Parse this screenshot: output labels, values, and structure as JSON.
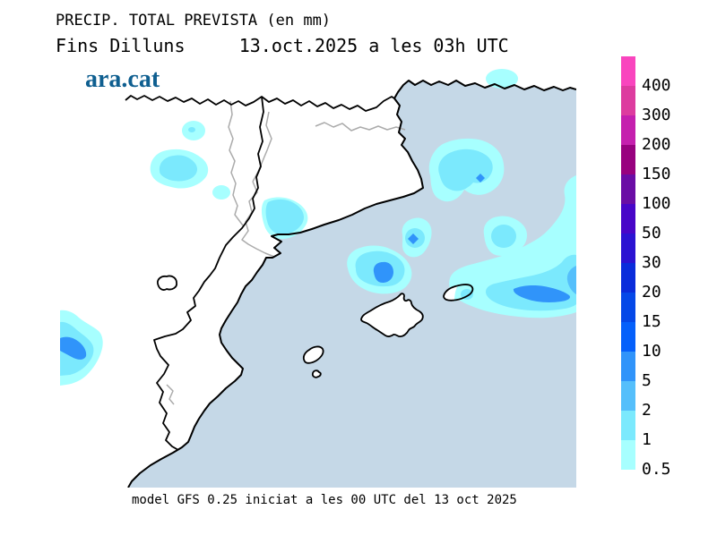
{
  "header": {
    "title": "PRECIP. TOTAL PREVISTA (en mm)",
    "subtitle": "Fins Dilluns     13.oct.2025 a les 03h UTC",
    "brand": "ara.cat"
  },
  "footer": {
    "caption": "model GFS 0.25 iniciat a les 00 UTC del 13 oct 2025"
  },
  "legend": {
    "unit": "mm",
    "values": [
      "400",
      "300",
      "200",
      "150",
      "100",
      "50",
      "30",
      "20",
      "15",
      "10",
      "5",
      "2",
      "1",
      "0.5"
    ],
    "colors": [
      "#F945BE",
      "#DD3C9F",
      "#C520AE",
      "#98027F",
      "#6A0DA5",
      "#4806C8",
      "#2B13D2",
      "#0A2CDB",
      "#0548E8",
      "#0560FB",
      "#3094FA",
      "#55BFFB",
      "#7BE9FD",
      "#A7FFFF"
    ]
  },
  "map": {
    "sea_color": "#C5D8E7",
    "land_color": "#FFFFFF",
    "coast_color": "#000000",
    "province_border_color": "#ABABAB",
    "brand_color": "#0F5F90",
    "precip_fill_colors": {
      "mm_0_5_to_1": "#A7FFFF",
      "mm_1_to_2": "#7BE9FD",
      "mm_2_to_5": "#55BFFB",
      "mm_5_to_10": "#3094FA"
    }
  }
}
